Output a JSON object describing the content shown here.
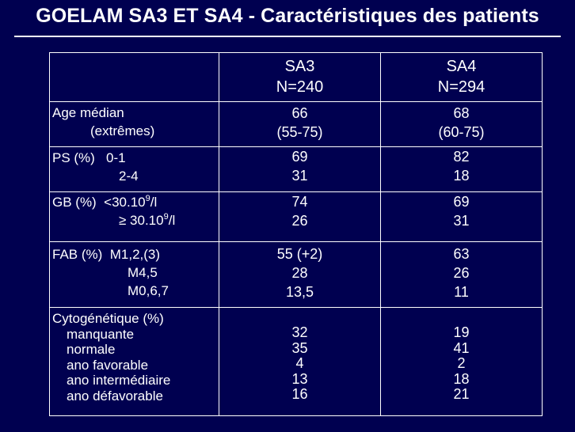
{
  "title": "GOELAM SA3 ET SA4 - Caractéristiques des patients",
  "columns": [
    {
      "line1": "SA3",
      "line2": "N=240"
    },
    {
      "line1": "SA4",
      "line2": "N=294"
    }
  ],
  "rows": {
    "age": {
      "label1": "Age médian",
      "label2": "(extrêmes)",
      "sa3": [
        "66",
        "(55-75)"
      ],
      "sa4": [
        "68",
        "(60-75)"
      ]
    },
    "ps": {
      "label1": "PS (%)   0-1",
      "label2": "2-4",
      "sa3": [
        "69",
        "31"
      ],
      "sa4": [
        "82",
        "18"
      ]
    },
    "gb": {
      "label1_pre": "GB (%)  <30.10",
      "label1_sup": "9",
      "label1_post": "/l",
      "label2_pre": "≥ 30.10",
      "label2_sup": "9",
      "label2_post": "/l",
      "sa3": [
        "74",
        "26"
      ],
      "sa4": [
        "69",
        "31"
      ]
    },
    "fab": {
      "label1": "FAB (%)  M1,2,(3)",
      "label2": "M4,5",
      "label3": "M0,6,7",
      "sa3": [
        "55 (+2)",
        "28",
        "13,5"
      ],
      "sa4": [
        "63",
        "26",
        "11"
      ]
    },
    "cyto": {
      "label1": "Cytogénétique (%)",
      "items": [
        "manquante",
        "normale",
        "ano favorable",
        "ano intermédiaire",
        "ano défavorable"
      ],
      "sa3": [
        "32",
        "35",
        "4",
        "13",
        "16"
      ],
      "sa4": [
        "19",
        "41",
        "2",
        "18",
        "21"
      ]
    }
  }
}
